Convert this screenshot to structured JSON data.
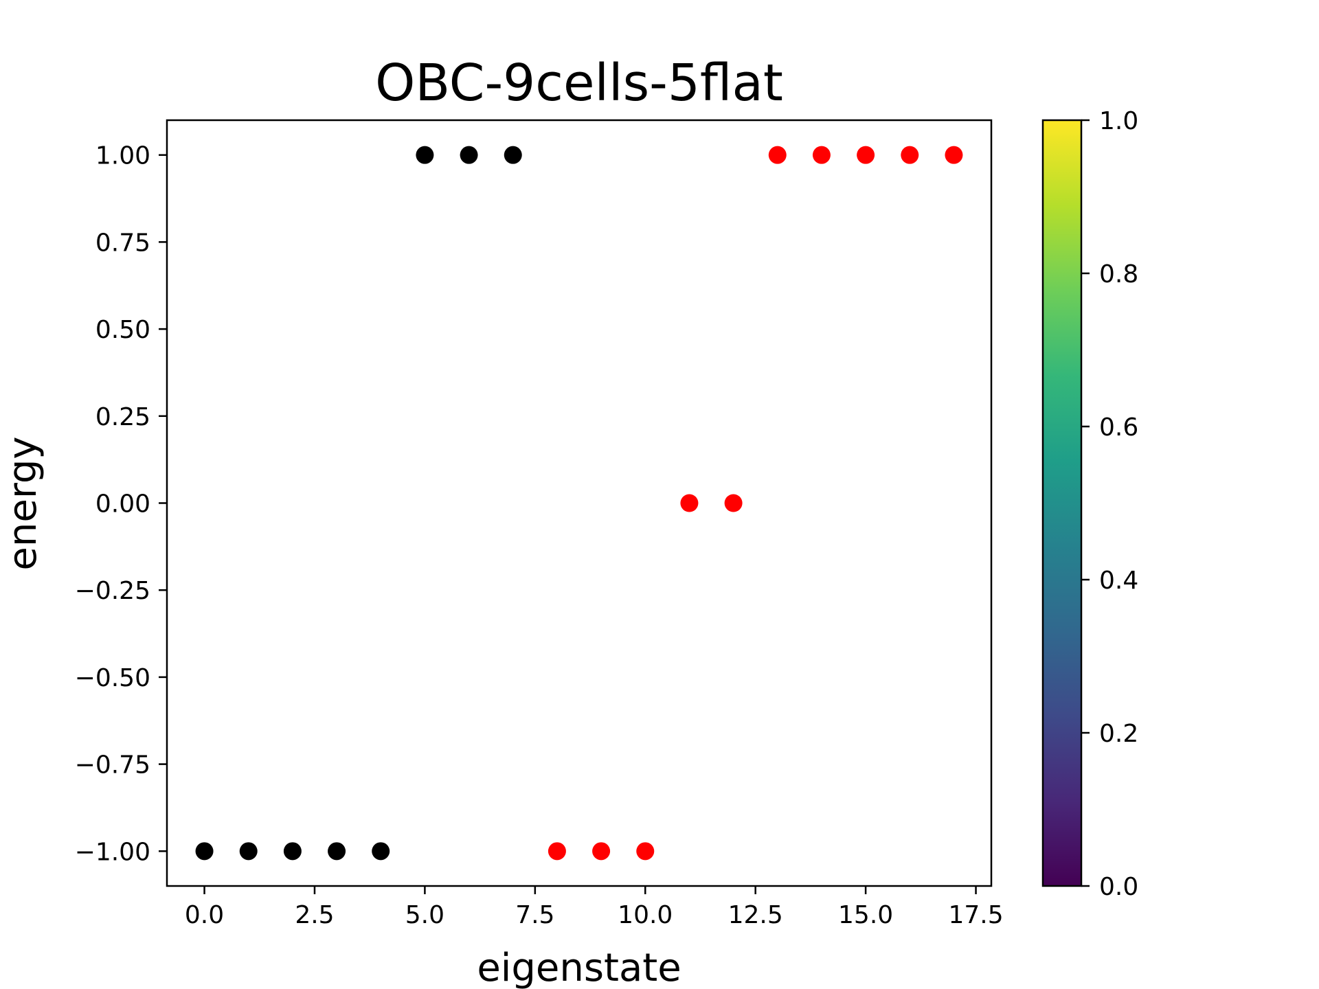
{
  "chart_data": {
    "type": "scatter",
    "title": "OBC-9cells-5flat",
    "xlabel": "eigenstate",
    "ylabel": "energy",
    "xlim": [
      -0.85,
      17.85
    ],
    "ylim": [
      -1.1,
      1.1
    ],
    "xticks": [
      0.0,
      2.5,
      5.0,
      7.5,
      10.0,
      12.5,
      15.0,
      17.5
    ],
    "xtick_labels": [
      "0.0",
      "2.5",
      "5.0",
      "7.5",
      "10.0",
      "12.5",
      "15.0",
      "17.5"
    ],
    "yticks": [
      1.0,
      0.75,
      0.5,
      0.25,
      0.0,
      -0.25,
      -0.5,
      -0.75,
      -1.0
    ],
    "ytick_labels": [
      "1.00",
      "0.75",
      "0.50",
      "0.25",
      "0.00",
      "−0.25",
      "−0.50",
      "−0.75",
      "−1.00"
    ],
    "grid": false,
    "series": [
      {
        "color": "#000000",
        "x": [
          0,
          1,
          2,
          3,
          4,
          5,
          6,
          7
        ],
        "y": [
          -1.0,
          -1.0,
          -1.0,
          -1.0,
          -1.0,
          1.0,
          1.0,
          1.0
        ]
      },
      {
        "color": "#ff0000",
        "x": [
          8,
          9,
          10,
          11,
          12,
          13,
          14,
          15,
          16,
          17
        ],
        "y": [
          -1.0,
          -1.0,
          -1.0,
          0.0,
          0.0,
          1.0,
          1.0,
          1.0,
          1.0,
          1.0
        ]
      }
    ],
    "colorbar": {
      "colormap": "viridis",
      "range": [
        0.0,
        1.0
      ],
      "ticks": [
        0.0,
        0.2,
        0.4,
        0.6,
        0.8,
        1.0
      ],
      "tick_labels": [
        "0.0",
        "0.2",
        "0.4",
        "0.6",
        "0.8",
        "1.0"
      ],
      "colors": [
        "#440154",
        "#482878",
        "#3e4a89",
        "#31688e",
        "#26828e",
        "#1f9e89",
        "#35b779",
        "#6ece58",
        "#b5de2b",
        "#fde725"
      ]
    }
  }
}
